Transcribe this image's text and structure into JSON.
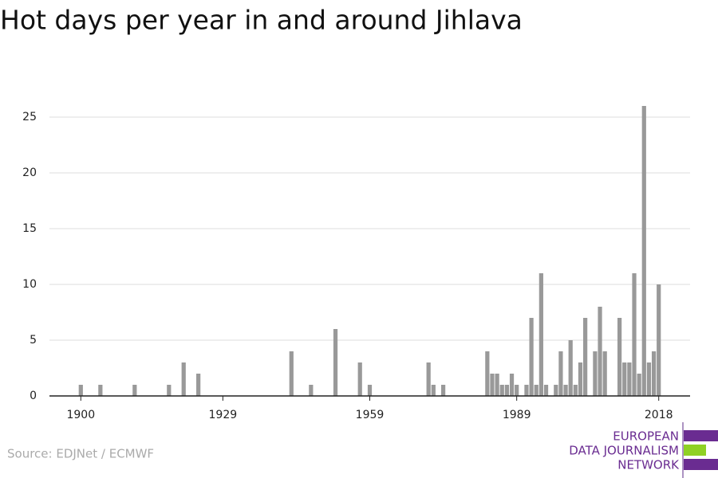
{
  "chart_data": {
    "type": "bar",
    "title": "Hot days per year in and around Jihlava",
    "source": "Source: EDJNet / ECMWF",
    "logo": [
      "EUROPEAN",
      "DATA JOURNALISM",
      "NETWORK"
    ],
    "color": "#999999",
    "x": [
      1900,
      1904,
      1911,
      1918,
      1921,
      1924,
      1943,
      1947,
      1952,
      1957,
      1959,
      1971,
      1972,
      1974,
      1983,
      1984,
      1985,
      1986,
      1987,
      1988,
      1989,
      1991,
      1992,
      1993,
      1994,
      1995,
      1997,
      1998,
      1999,
      2000,
      2001,
      2002,
      2003,
      2005,
      2006,
      2007,
      2010,
      2011,
      2012,
      2013,
      2014,
      2015,
      2016,
      2017,
      2018
    ],
    "values": [
      1,
      1,
      1,
      1,
      3,
      2,
      4,
      1,
      6,
      3,
      1,
      3,
      1,
      1,
      4,
      2,
      2,
      1,
      1,
      2,
      1,
      1,
      7,
      1,
      11,
      1,
      1,
      4,
      1,
      5,
      1,
      3,
      7,
      4,
      8,
      4,
      7,
      3,
      3,
      11,
      2,
      26,
      3,
      4,
      10
    ],
    "xlim": [
      1893.6,
      2024.4
    ],
    "xticks": [
      1900,
      1929,
      1959,
      1989,
      2018
    ],
    "ylim": [
      0,
      26
    ],
    "yticks": [
      0,
      5,
      10,
      15,
      20,
      25
    ],
    "grid": true
  }
}
